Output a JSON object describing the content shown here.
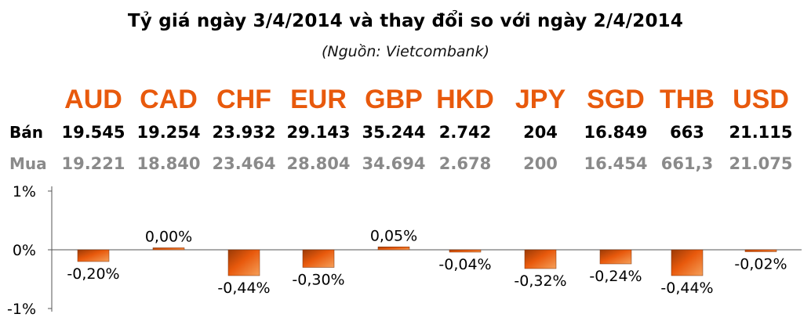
{
  "header": {
    "title": "Tỷ giá ngày 3/4/2014 và thay đổi so với ngày 2/4/2014",
    "subtitle": "(Nguồn: Vietcombank)"
  },
  "rows": {
    "ban_label": "Bán",
    "mua_label": "Mua"
  },
  "currencies": [
    {
      "code": "AUD",
      "ban": "19.545",
      "mua": "19.221"
    },
    {
      "code": "CAD",
      "ban": "19.254",
      "mua": "18.840"
    },
    {
      "code": "CHF",
      "ban": "23.932",
      "mua": "23.464"
    },
    {
      "code": "EUR",
      "ban": "29.143",
      "mua": "28.804"
    },
    {
      "code": "GBP",
      "ban": "35.244",
      "mua": "34.694"
    },
    {
      "code": "HKD",
      "ban": "2.742",
      "mua": "2.678"
    },
    {
      "code": "JPY",
      "ban": "204",
      "mua": "200"
    },
    {
      "code": "SGD",
      "ban": "16.849",
      "mua": "16.454"
    },
    {
      "code": "THB",
      "ban": "663",
      "mua": "661,3"
    },
    {
      "code": "USD",
      "ban": "21.115",
      "mua": "21.075"
    }
  ],
  "colors": {
    "accent": "#E8590C",
    "bar_dark": "#9A3A06",
    "bar_light": "#F5A05A"
  },
  "chart_data": {
    "type": "bar",
    "categories": [
      "AUD",
      "CAD",
      "CHF",
      "EUR",
      "GBP",
      "HKD",
      "JPY",
      "SGD",
      "THB",
      "USD"
    ],
    "values": [
      -0.2,
      0.0,
      -0.44,
      -0.3,
      0.05,
      -0.04,
      -0.32,
      -0.24,
      -0.44,
      -0.02
    ],
    "data_labels": [
      "-0,20%",
      "0,00%",
      "-0,44%",
      "-0,30%",
      "0,05%",
      "-0,04%",
      "-0,32%",
      "-0,24%",
      "-0,44%",
      "-0,02%"
    ],
    "ylim": [
      -1,
      1
    ],
    "yticks": [
      1,
      0,
      -1
    ],
    "ytick_labels": [
      "1%",
      "0%",
      "-1%"
    ],
    "grid": false,
    "title": "",
    "xlabel": "",
    "ylabel": ""
  }
}
